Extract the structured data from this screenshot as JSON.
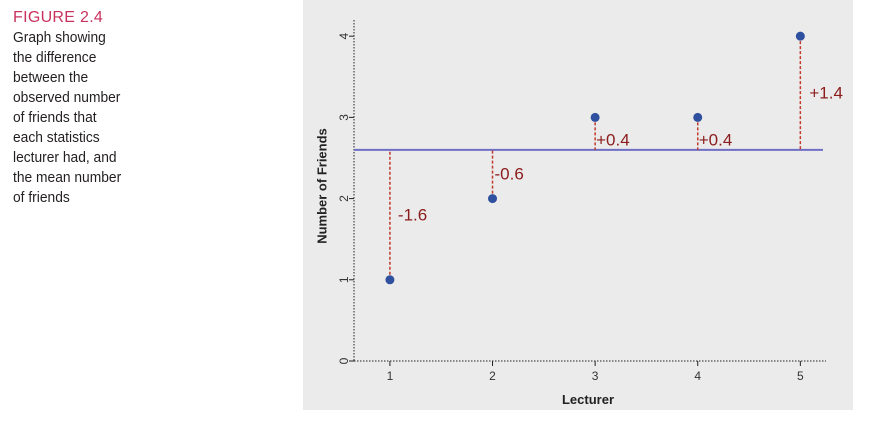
{
  "caption": {
    "figure_label": "FIGURE 2.4",
    "lines": [
      "Graph showing",
      "the difference",
      "between the",
      "observed number",
      "of friends that",
      "each statistics",
      "lecturer had, and",
      "the mean number",
      "of friends"
    ]
  },
  "chart_data": {
    "type": "scatter",
    "title": "",
    "xlabel": "Lecturer",
    "ylabel": "Number of Friends",
    "x_ticks": [
      "1",
      "2",
      "3",
      "4",
      "5"
    ],
    "y_ticks": [
      "0",
      "1",
      "2",
      "3",
      "4"
    ],
    "xlim": [
      0.65,
      5.25
    ],
    "ylim": [
      0,
      4.15
    ],
    "x": [
      1,
      2,
      3,
      4,
      5
    ],
    "y": [
      1,
      2,
      3,
      3,
      4
    ],
    "mean_line": 2.6,
    "residual_labels": [
      "-1.6",
      "-0.6",
      "+0.4",
      "+0.4",
      "+1.4"
    ],
    "grid": false,
    "colors": {
      "point": "#2f4f9f",
      "mean_line": "#6f6fc6",
      "residual": "#c0392b",
      "residual_label": "#8b1c1c",
      "panel": "#ebebeb",
      "axis": "#222222"
    }
  }
}
